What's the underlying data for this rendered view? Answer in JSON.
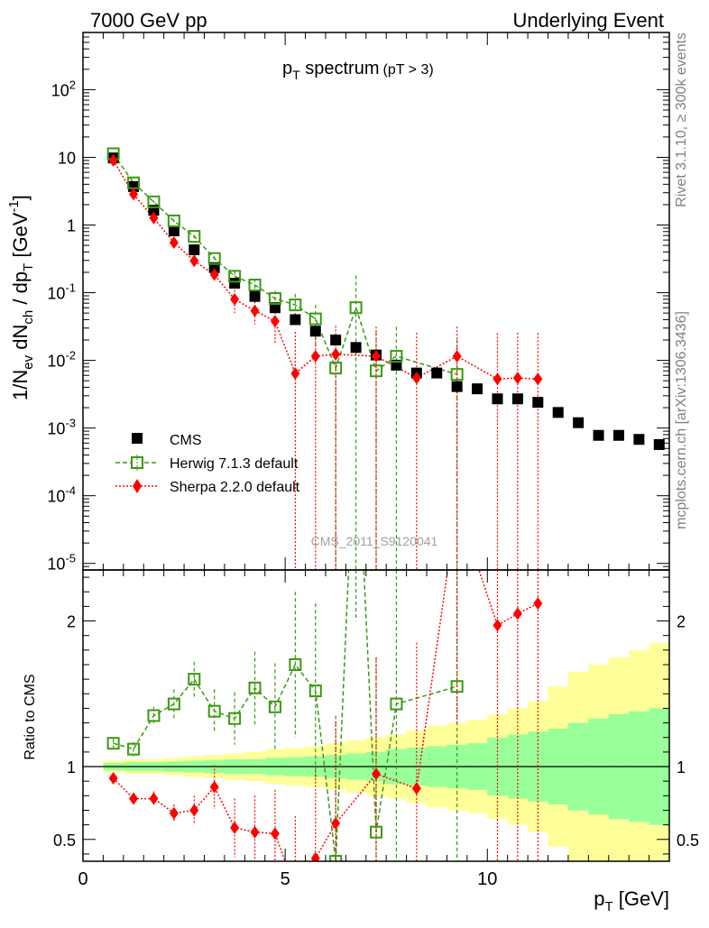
{
  "header": {
    "left": "7000 GeV pp",
    "right": "Underlying Event"
  },
  "side_labels": {
    "rivet": "Rivet 3.1.10, ≥ 300k events",
    "mcplots": "mcplots.cern.ch [arXiv:1306.3436]"
  },
  "chart_data": [
    {
      "panel": "main",
      "type": "scatter",
      "title": "p_T spectrum (pT > 3)",
      "title_main": "p",
      "title_sub": "T",
      "title_rest": " spectrum",
      "title_small": "(pT >  3)",
      "ylabel": "1/N_ev dN_ch / dp_T [GeV^-1]",
      "yscale": "log",
      "ylim": [
        8e-06,
        700
      ],
      "xlim": [
        0,
        14.5
      ],
      "y_tick_labels": [
        "10^-5",
        "10^-4",
        "10^-3",
        "10^-2",
        "10^-1",
        "1",
        "10",
        "10^2"
      ],
      "watermark": "CMS_2011_S9120041",
      "legend_position": "bottom-left",
      "series": [
        {
          "name": "CMS",
          "color": "#000000",
          "marker": "square",
          "x": [
            0.75,
            1.25,
            1.75,
            2.25,
            2.75,
            3.25,
            3.75,
            4.25,
            4.75,
            5.25,
            5.75,
            6.25,
            6.75,
            7.25,
            7.75,
            8.25,
            8.75,
            9.25,
            9.75,
            10.25,
            10.75,
            11.25,
            11.75,
            12.25,
            12.75,
            13.25,
            13.75,
            14.25
          ],
          "y": [
            9.8,
            3.7,
            1.65,
            0.82,
            0.43,
            0.235,
            0.138,
            0.088,
            0.06,
            0.04,
            0.027,
            0.02,
            0.0155,
            0.012,
            0.0085,
            0.0065,
            0.0065,
            0.0041,
            0.0038,
            0.0027,
            0.0027,
            0.0024,
            0.0017,
            0.0012,
            0.00078,
            0.00078,
            0.00068,
            0.00057
          ]
        },
        {
          "name": "Herwig 7.1.3 default",
          "color": "#3a9a10",
          "marker": "open-square",
          "line": "dashed",
          "x": [
            0.75,
            1.25,
            1.75,
            2.25,
            2.75,
            3.25,
            3.75,
            4.25,
            4.75,
            5.25,
            5.75,
            6.25,
            6.75,
            7.25,
            7.75,
            9.25
          ],
          "y": [
            11.3,
            4.2,
            2.2,
            1.15,
            0.68,
            0.32,
            0.175,
            0.13,
            0.082,
            0.066,
            0.041,
            0.0077,
            0.06,
            0.007,
            0.0115,
            0.0062
          ],
          "err": [
            0.3,
            0.15,
            0.08,
            0.05,
            0.04,
            0.03,
            0.03,
            0.03,
            0.025,
            0.03,
            0.025,
            0.015,
            0.12,
            0.02,
            0.02,
            0.014
          ]
        },
        {
          "name": "Sherpa 2.2.0 default",
          "color": "#ff0000",
          "marker": "diamond",
          "line": "dotted",
          "x": [
            0.75,
            1.25,
            1.75,
            2.25,
            2.75,
            3.25,
            3.75,
            4.25,
            4.75,
            5.25,
            5.75,
            6.25,
            7.25,
            8.25,
            9.25,
            10.25,
            10.75,
            11.25
          ],
          "y": [
            9.0,
            2.85,
            1.27,
            0.55,
            0.295,
            0.185,
            0.08,
            0.054,
            0.038,
            0.0064,
            0.0115,
            0.0123,
            0.0115,
            0.0055,
            0.0115,
            0.0053,
            0.0055,
            0.0053
          ],
          "err": [
            0.3,
            0.1,
            0.05,
            0.04,
            0.03,
            0.03,
            0.03,
            0.02,
            0.02,
            0.02,
            0.02,
            0.02,
            0.02,
            0.02,
            0.02,
            0.02,
            0.02,
            0.02
          ]
        }
      ]
    },
    {
      "panel": "ratio",
      "type": "line",
      "ylabel": "Ratio to CMS",
      "xlabel": "p_T [GeV]",
      "ylim": [
        0.35,
        2.35
      ],
      "xlim": [
        0,
        14.5
      ],
      "x_ticks": [
        0,
        5,
        10
      ],
      "y_ticks": [
        0.5,
        1,
        2
      ],
      "reference_line": 1,
      "band_edges": [
        0.5,
        1.0,
        1.5,
        2.0,
        2.5,
        3.0,
        3.5,
        4.0,
        4.5,
        5.0,
        5.5,
        6.0,
        6.5,
        7.0,
        7.5,
        8.0,
        8.5,
        9.0,
        9.5,
        10.0,
        10.5,
        11.0,
        11.5,
        12.0,
        12.5,
        13.0,
        13.5,
        14.0,
        14.5
      ],
      "band_inner_half": [
        0.025,
        0.03,
        0.03,
        0.035,
        0.04,
        0.045,
        0.05,
        0.05,
        0.06,
        0.065,
        0.07,
        0.08,
        0.09,
        0.1,
        0.12,
        0.13,
        0.14,
        0.15,
        0.16,
        0.2,
        0.22,
        0.24,
        0.26,
        0.3,
        0.33,
        0.36,
        0.38,
        0.4
      ],
      "band_outer_half": [
        0.04,
        0.05,
        0.05,
        0.06,
        0.07,
        0.08,
        0.09,
        0.1,
        0.12,
        0.13,
        0.14,
        0.16,
        0.18,
        0.2,
        0.22,
        0.25,
        0.28,
        0.3,
        0.32,
        0.36,
        0.4,
        0.45,
        0.55,
        0.65,
        0.7,
        0.75,
        0.8,
        0.85
      ],
      "band_colors": {
        "inner": "#99ff99",
        "outer": "#ffff99"
      },
      "series": [
        {
          "name": "Herwig 7.1.3 default",
          "color": "#3a9a10",
          "x": [
            0.75,
            1.25,
            1.75,
            2.25,
            2.75,
            3.25,
            3.75,
            4.25,
            4.75,
            5.25,
            5.75,
            6.25,
            6.75,
            7.25,
            7.75,
            9.25
          ],
          "y": [
            1.16,
            1.12,
            1.35,
            1.43,
            1.6,
            1.38,
            1.33,
            1.54,
            1.41,
            1.7,
            1.52,
            0.35,
            3.5,
            0.55,
            1.43,
            1.55
          ],
          "err": [
            0.03,
            0.05,
            0.06,
            0.1,
            0.12,
            0.15,
            0.18,
            0.25,
            0.3,
            0.5,
            0.6,
            1.0,
            1.5,
            1.2,
            1.3,
            2.5
          ]
        },
        {
          "name": "Sherpa 2.2.0 default",
          "color": "#ff0000",
          "x": [
            0.75,
            1.25,
            1.75,
            2.25,
            2.75,
            3.25,
            3.75,
            4.25,
            4.75,
            5.25,
            5.75,
            6.25,
            7.25,
            8.25,
            9.25,
            10.25,
            10.75,
            11.25
          ],
          "y": [
            0.92,
            0.78,
            0.78,
            0.68,
            0.7,
            0.86,
            0.58,
            0.55,
            0.54,
            0.16,
            0.37,
            0.61,
            0.95,
            0.85,
            2.8,
            1.97,
            2.05,
            2.12
          ],
          "err": [
            0.03,
            0.04,
            0.05,
            0.06,
            0.1,
            0.15,
            0.2,
            0.25,
            0.3,
            0.5,
            0.6,
            0.7,
            0.8,
            1.0,
            1.5,
            2.0,
            2.0,
            2.0
          ]
        }
      ]
    }
  ]
}
